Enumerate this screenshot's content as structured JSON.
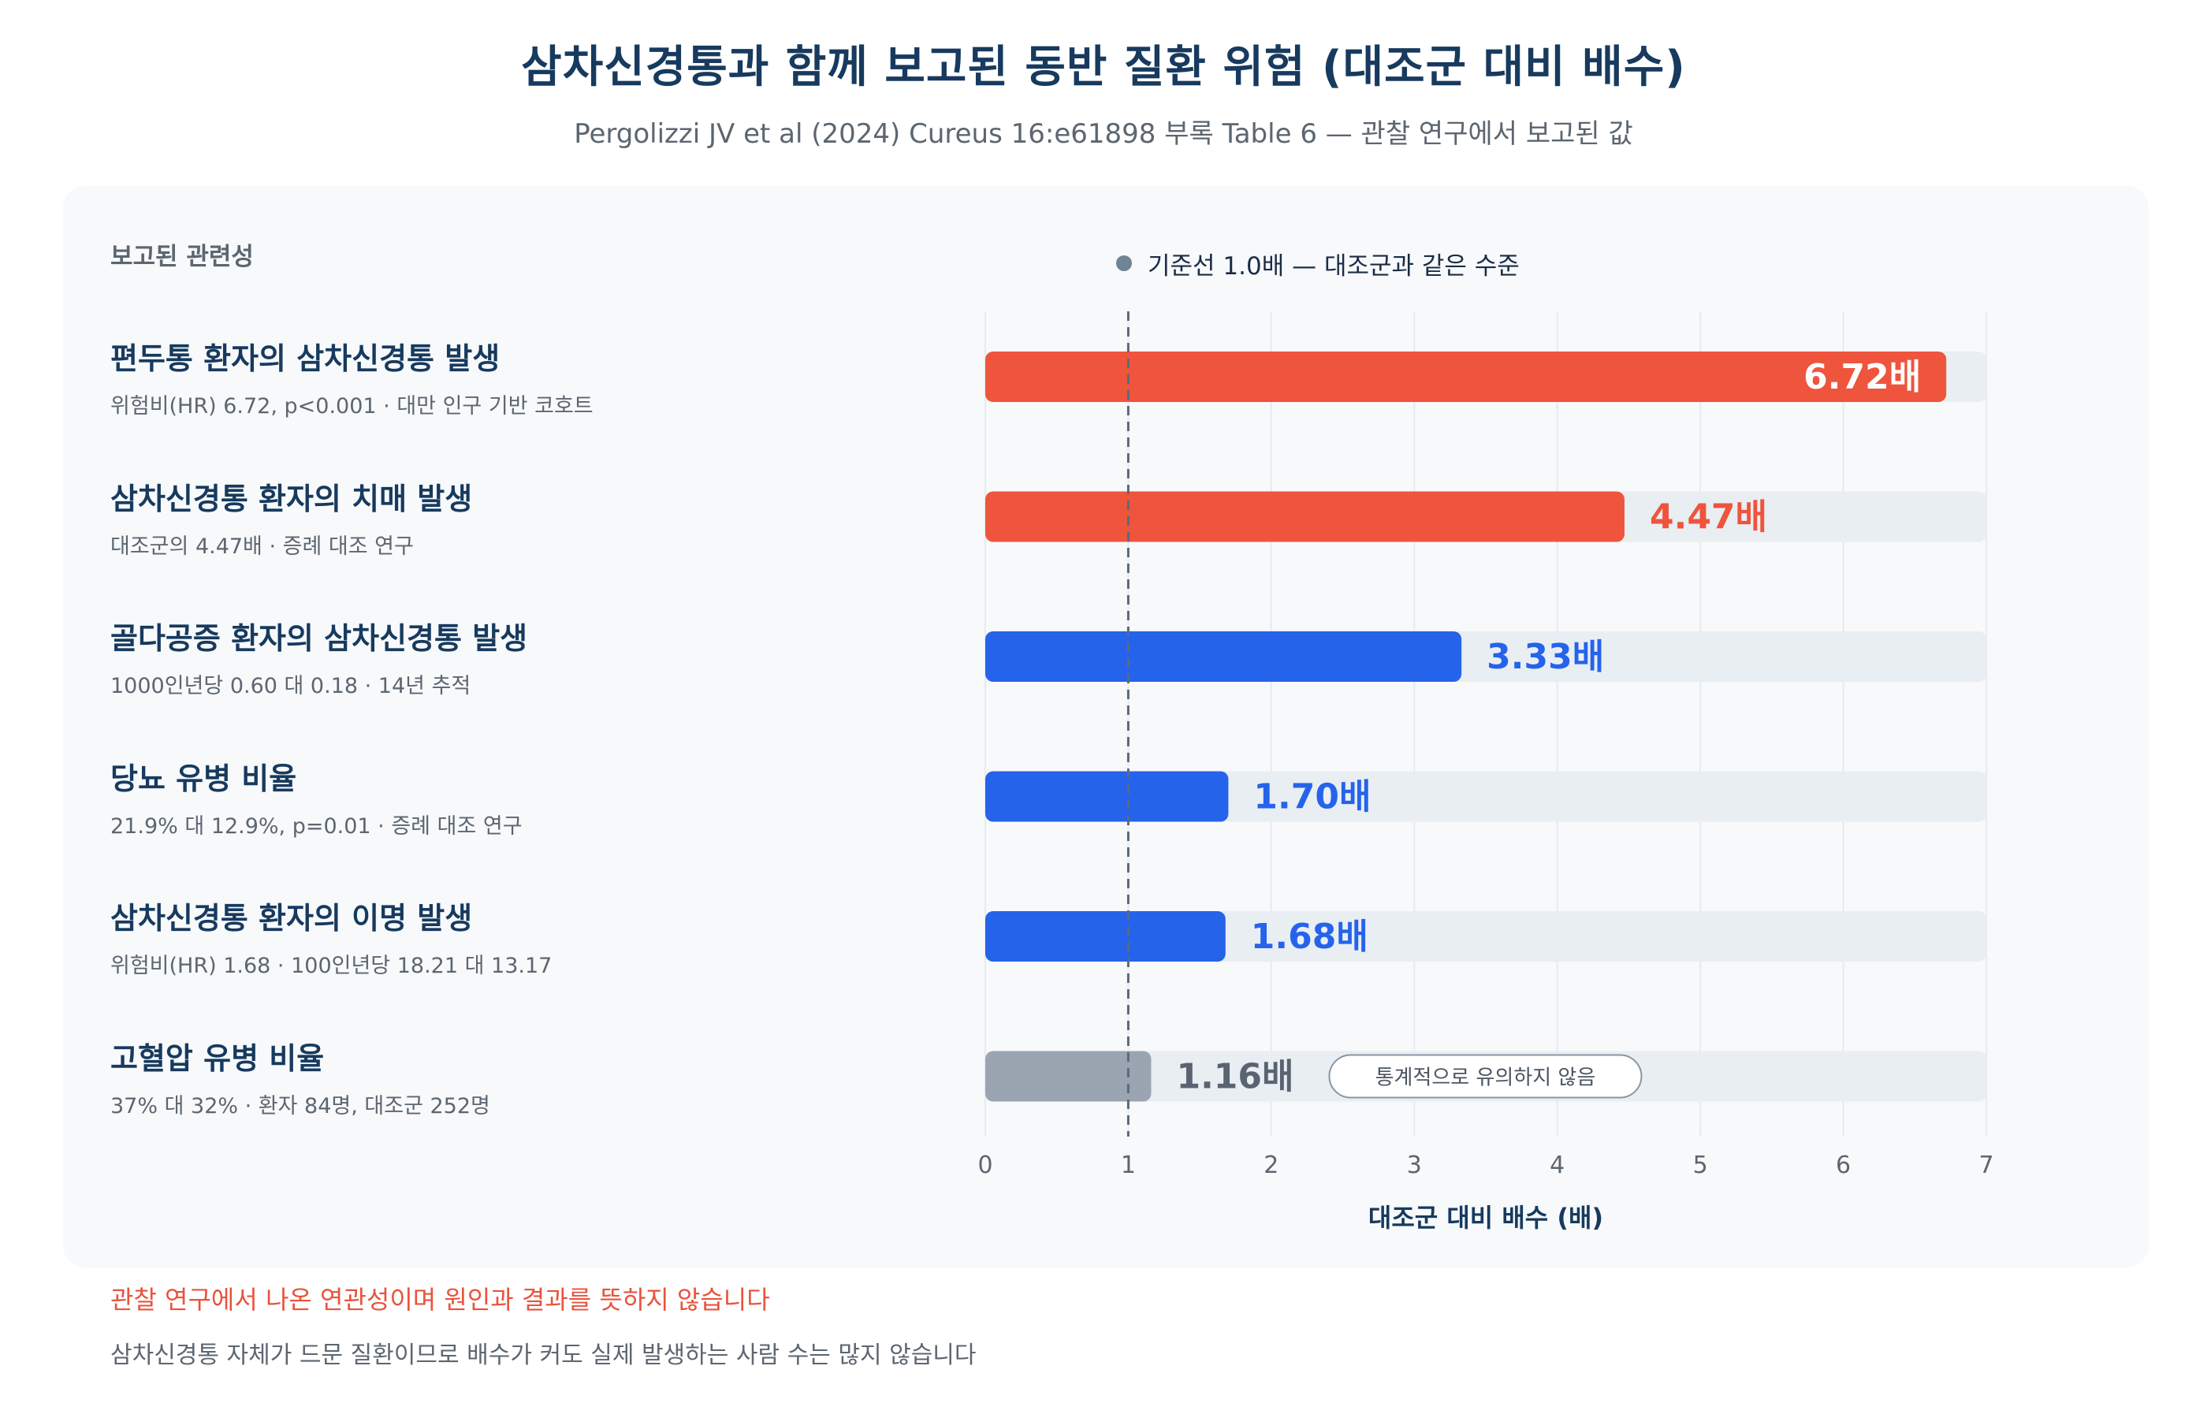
{
  "title": "삼차신경통과 함께 보고된 동반 질환 위험 (대조군 대비 배수)",
  "subtitle": "Pergolizzi JV et al (2024) Cureus 16:e61898 부록 Table 6 — 관찰 연구에서 보고된 값",
  "panel_heading": "보고된 관련성",
  "legend": "기준선 1.0배 — 대조군과 같은 수준",
  "footnote_causation": "관찰 연구에서 나온 연관성이며 원인과 결과를 뜻하지 않습니다",
  "footnote_rarity": "삼차신경통 자체가 드문 질환이므로 배수가 커도 실제 발생하는 사람 수는 많지 않습니다",
  "colors": {
    "high": "#ef543c",
    "medium": "#2563eb",
    "not_significant": "#9aa5b1",
    "track": "#e9eef3",
    "baseline": "#5a6b7c",
    "title": "#173a5e"
  },
  "chart_data": {
    "type": "bar",
    "orientation": "horizontal",
    "title": "삼차신경통과 함께 보고된 동반 질환 위험 (대조군 대비 배수)",
    "xlabel": "대조군 대비 배수 (배)",
    "xlim": [
      0,
      7
    ],
    "xticks": [
      "0",
      "1",
      "2",
      "3",
      "4",
      "5",
      "6",
      "7"
    ],
    "baseline": 1.0,
    "grid": true,
    "value_suffix": "배",
    "categories": [
      "편두통 환자의 삼차신경통 발생",
      "삼차신경통 환자의 치매 발생",
      "골다공증 환자의 삼차신경통 발생",
      "당뇨 유병 비율",
      "삼차신경통 환자의 이명 발생",
      "고혈압 유병 비율"
    ],
    "notes": [
      "위험비(HR) 6.72, p<0.001 · 대만 인구 기반 코호트",
      "대조군의 4.47배 · 증례 대조 연구",
      "1000인년당 0.60 대 0.18 · 14년 추적",
      "21.9% 대 12.9%, p=0.01 · 증례 대조 연구",
      "위험비(HR) 1.68 · 100인년당 18.21 대 13.17",
      "37% 대 32% · 환자 84명, 대조군 252명"
    ],
    "values": [
      6.72,
      4.47,
      3.33,
      1.7,
      1.68,
      1.16
    ],
    "value_labels": [
      "6.72배",
      "4.47배",
      "3.33배",
      "1.70배",
      "1.68배",
      "1.16배"
    ],
    "levels": [
      "high",
      "high",
      "medium",
      "medium",
      "medium",
      "not_significant"
    ],
    "badges": [
      "",
      "",
      "",
      "",
      "",
      "통계적으로 유의하지 않음"
    ]
  }
}
